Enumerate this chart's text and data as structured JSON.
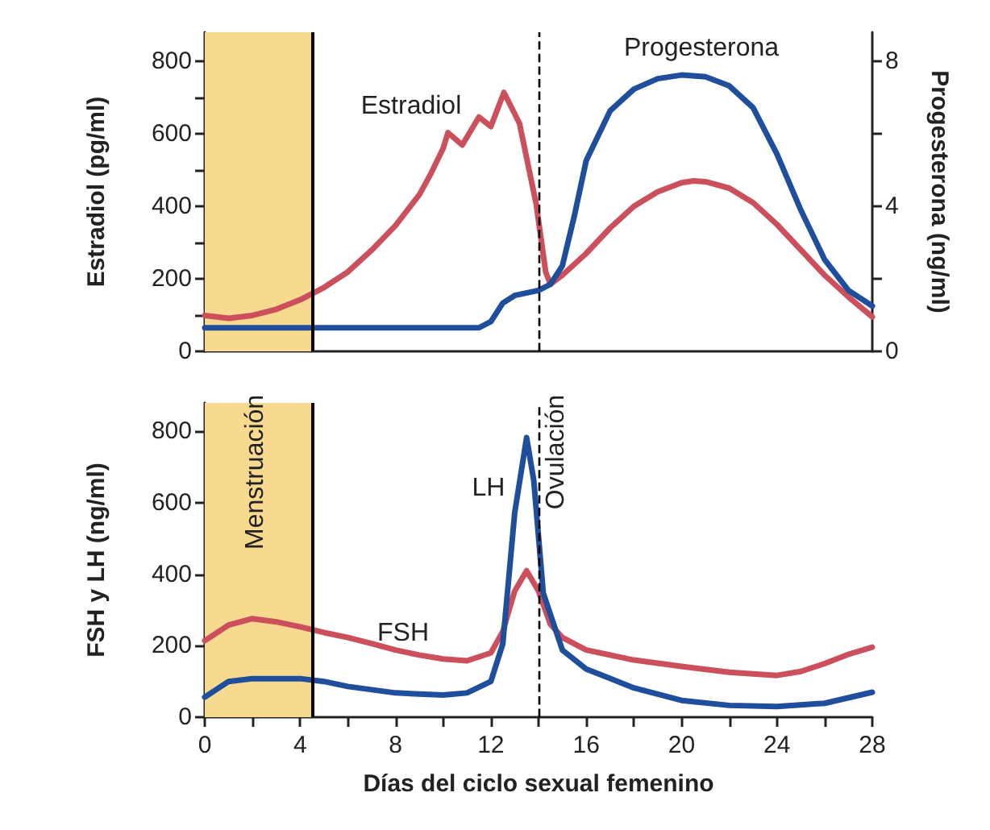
{
  "chart_data": [
    {
      "type": "line",
      "ylabel": "Estradiol (pg/ml)",
      "y2label": "Progesterona (ng/ml)",
      "xlim": [
        0,
        28
      ],
      "ylim": [
        0,
        880
      ],
      "yticks": [
        0,
        {
          "value": 100,
          "label": null
        },
        200,
        {
          "value": 300,
          "label": null
        },
        400,
        {
          "value": 500,
          "label": null
        },
        600,
        {
          "value": 700,
          "label": null
        },
        800
      ],
      "y2lim": [
        0,
        8.8
      ],
      "y2ticks": [
        0,
        {
          "value": 2,
          "label": null
        },
        4,
        {
          "value": 6,
          "label": null
        },
        8
      ],
      "tick_labels": "y",
      "legend": false,
      "grid": false,
      "marker": "none",
      "line_style": "solid",
      "series": [
        {
          "name": "Estradiol",
          "color": "#cc4f5c",
          "x": [
            0,
            1,
            2,
            3,
            4,
            5,
            6,
            7,
            8,
            9,
            9.5,
            10,
            10.2,
            10.8,
            11.5,
            12,
            12.55,
            13.2,
            13.9,
            14.3,
            14.5,
            15,
            16,
            17,
            18,
            19,
            20,
            20.5,
            21,
            22,
            23,
            24,
            25,
            26,
            27,
            28
          ],
          "values": [
            99,
            91,
            99,
            116,
            142,
            176,
            219,
            279,
            347,
            432,
            492,
            560,
            603,
            569,
            646,
            620,
            714,
            629,
            407,
            219,
            185,
            210,
            270,
            340,
            400,
            440,
            465,
            470,
            468,
            450,
            410,
            350,
            280,
            210,
            150,
            95
          ]
        },
        {
          "name": "Progesterona",
          "color": "#1f4f9c",
          "axis": "y2",
          "x": [
            0,
            2,
            4,
            6,
            8,
            10,
            11.5,
            12,
            12.5,
            13,
            14,
            14.5,
            15,
            15.5,
            16,
            17,
            18,
            19,
            20,
            21,
            22,
            23,
            24,
            25,
            26,
            27,
            28
          ],
          "values": [
            0.65,
            0.65,
            0.65,
            0.65,
            0.65,
            0.65,
            0.65,
            0.82,
            1.33,
            1.54,
            1.68,
            1.85,
            2.36,
            3.73,
            5.26,
            6.63,
            7.23,
            7.52,
            7.62,
            7.57,
            7.32,
            6.72,
            5.44,
            3.9,
            2.53,
            1.68,
            1.25
          ]
        }
      ],
      "ref_lines": [
        {
          "axis": "x",
          "value": 4.5,
          "color": "#000000",
          "line_style": "solid"
        },
        {
          "axis": "x",
          "value": 14,
          "color": "#000000",
          "line_style": "dashed"
        }
      ],
      "bands": [
        {
          "axis": "x",
          "from": 0,
          "to": 4.5,
          "color": "#f7d98f"
        }
      ]
    },
    {
      "type": "line",
      "ylabel": "FSH y LH (ng/ml)",
      "xlabel": "Días del ciclo sexual femenino",
      "xlim": [
        0,
        28
      ],
      "xticks": [
        0,
        {
          "value": 2,
          "label": null
        },
        4,
        {
          "value": 6,
          "label": null
        },
        8,
        {
          "value": 10,
          "label": null
        },
        12,
        {
          "value": 14,
          "label": null
        },
        16,
        {
          "value": 18,
          "label": null
        },
        20,
        {
          "value": 22,
          "label": null
        },
        24,
        {
          "value": 26,
          "label": null
        },
        28
      ],
      "ylim": [
        0,
        880
      ],
      "yticks": [
        0,
        200,
        400,
        600,
        800
      ],
      "legend": false,
      "grid": false,
      "marker": "none",
      "line_style": "solid",
      "series": [
        {
          "name": "FSH",
          "color": "#cc4f5c",
          "x": [
            0,
            1,
            2,
            3,
            4,
            5,
            6,
            7,
            8,
            9,
            10,
            11,
            12,
            12.5,
            13,
            13.5,
            14,
            14.5,
            15,
            16,
            18,
            20,
            22,
            24,
            25,
            26,
            27,
            28
          ],
          "values": [
            214,
            258,
            276,
            267,
            253,
            237,
            223,
            206,
            188,
            174,
            163,
            158,
            180,
            240,
            353,
            410,
            353,
            260,
            223,
            188,
            160,
            142,
            126,
            117,
            128,
            150,
            176,
            196
          ]
        },
        {
          "name": "LH",
          "color": "#1f4f9c",
          "x": [
            0,
            1,
            2,
            4,
            5,
            6,
            8,
            10,
            11,
            12,
            12.5,
            13,
            13.5,
            13.8,
            14.2,
            15,
            16,
            18,
            20,
            22,
            24,
            26,
            28
          ],
          "values": [
            56,
            100,
            108,
            108,
            100,
            86,
            68,
            62,
            68,
            100,
            205,
            572,
            783,
            663,
            347,
            188,
            135,
            82,
            47,
            33,
            30,
            39,
            70
          ]
        }
      ],
      "ref_lines": [
        {
          "axis": "x",
          "value": 4.5,
          "color": "#000000",
          "line_style": "solid"
        },
        {
          "axis": "x",
          "value": 14,
          "color": "#000000",
          "line_style": "dashed",
          "label": "Ovulación"
        }
      ],
      "bands": [
        {
          "axis": "x",
          "from": 0,
          "to": 4.5,
          "color": "#f7d98f",
          "label": "Menstruación"
        }
      ]
    }
  ]
}
